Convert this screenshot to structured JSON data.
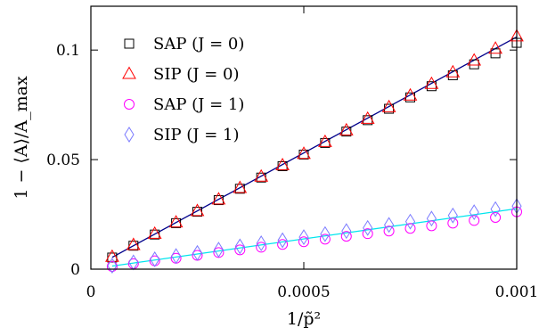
{
  "chart_data": {
    "type": "scatter",
    "xlabel": "1/p̃²",
    "ylabel": "1 − ⟨A⟩/A_max",
    "xlim": [
      0,
      0.001
    ],
    "ylim": [
      0,
      0.12
    ],
    "x_ticks": [
      {
        "value": 0,
        "label": "0"
      },
      {
        "value": 0.0005,
        "label": "0.0005"
      },
      {
        "value": 0.001,
        "label": "0.001"
      }
    ],
    "y_ticks": [
      {
        "value": 0,
        "label": "0"
      },
      {
        "value": 0.05,
        "label": "0.05"
      },
      {
        "value": 0.1,
        "label": "0.1"
      }
    ],
    "legend_position": "top-left",
    "series": [
      {
        "name": "SAP (J = 0)",
        "marker": "square",
        "color": "#000000",
        "points": [
          [
            5e-05,
            0.0053
          ],
          [
            0.0001,
            0.0107
          ],
          [
            0.00015,
            0.0158
          ],
          [
            0.0002,
            0.021
          ],
          [
            0.00025,
            0.0262
          ],
          [
            0.0003,
            0.0315
          ],
          [
            0.00035,
            0.0367
          ],
          [
            0.0004,
            0.0418
          ],
          [
            0.00045,
            0.047
          ],
          [
            0.0005,
            0.0523
          ],
          [
            0.00055,
            0.0576
          ],
          [
            0.0006,
            0.0628
          ],
          [
            0.00065,
            0.068
          ],
          [
            0.0007,
            0.0732
          ],
          [
            0.00075,
            0.0784
          ],
          [
            0.0008,
            0.0835
          ],
          [
            0.00085,
            0.0885
          ],
          [
            0.0009,
            0.0935
          ],
          [
            0.00095,
            0.0985
          ],
          [
            0.001,
            0.1033
          ]
        ]
      },
      {
        "name": "SIP (J = 0)",
        "marker": "triangle",
        "color": "#ff0000",
        "points": [
          [
            5e-05,
            0.0056
          ],
          [
            0.0001,
            0.011
          ],
          [
            0.00015,
            0.0161
          ],
          [
            0.0002,
            0.0213
          ],
          [
            0.00025,
            0.0265
          ],
          [
            0.0003,
            0.0318
          ],
          [
            0.00035,
            0.037
          ],
          [
            0.0004,
            0.0422
          ],
          [
            0.00045,
            0.0474
          ],
          [
            0.0005,
            0.0526
          ],
          [
            0.00055,
            0.058
          ],
          [
            0.0006,
            0.0633
          ],
          [
            0.00065,
            0.0686
          ],
          [
            0.0007,
            0.0739
          ],
          [
            0.00075,
            0.0792
          ],
          [
            0.0008,
            0.0845
          ],
          [
            0.00085,
            0.0898
          ],
          [
            0.0009,
            0.0952
          ],
          [
            0.00095,
            0.1006
          ],
          [
            0.001,
            0.1062
          ]
        ]
      },
      {
        "name": "SAP (J = 1)",
        "marker": "circle",
        "color": "#ff00ff",
        "points": [
          [
            5e-05,
            0.0012
          ],
          [
            0.0001,
            0.0025
          ],
          [
            0.00015,
            0.0038
          ],
          [
            0.0002,
            0.005
          ],
          [
            0.00025,
            0.0063
          ],
          [
            0.0003,
            0.0076
          ],
          [
            0.00035,
            0.0088
          ],
          [
            0.0004,
            0.01
          ],
          [
            0.00045,
            0.0113
          ],
          [
            0.0005,
            0.0125
          ],
          [
            0.00055,
            0.0137
          ],
          [
            0.0006,
            0.015
          ],
          [
            0.00065,
            0.0162
          ],
          [
            0.0007,
            0.0174
          ],
          [
            0.00075,
            0.0186
          ],
          [
            0.0008,
            0.0198
          ],
          [
            0.00085,
            0.021
          ],
          [
            0.0009,
            0.0222
          ],
          [
            0.00095,
            0.0236
          ],
          [
            0.001,
            0.0262
          ]
        ]
      },
      {
        "name": "SIP (J = 1)",
        "marker": "diamond",
        "color": "#7b7bff",
        "points": [
          [
            5e-05,
            0.0016
          ],
          [
            0.0001,
            0.0031
          ],
          [
            0.00015,
            0.0045
          ],
          [
            0.0002,
            0.006
          ],
          [
            0.00025,
            0.0074
          ],
          [
            0.0003,
            0.0089
          ],
          [
            0.00035,
            0.0104
          ],
          [
            0.0004,
            0.0118
          ],
          [
            0.00045,
            0.0132
          ],
          [
            0.0005,
            0.0146
          ],
          [
            0.00055,
            0.016
          ],
          [
            0.0006,
            0.0174
          ],
          [
            0.00065,
            0.0188
          ],
          [
            0.0007,
            0.0202
          ],
          [
            0.00075,
            0.0217
          ],
          [
            0.0008,
            0.0231
          ],
          [
            0.00085,
            0.0245
          ],
          [
            0.0009,
            0.026
          ],
          [
            0.00095,
            0.0274
          ],
          [
            0.001,
            0.0288
          ]
        ]
      }
    ],
    "fit_lines": [
      {
        "color": "#00008b",
        "from": [
          5e-05,
          0.0054
        ],
        "to": [
          0.001,
          0.106
        ]
      },
      {
        "color": "#00e5ee",
        "from": [
          5e-05,
          0.0014
        ],
        "to": [
          0.001,
          0.0276
        ]
      }
    ]
  }
}
